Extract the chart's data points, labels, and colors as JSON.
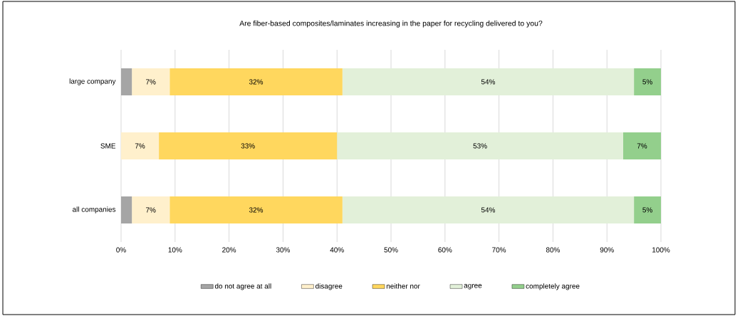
{
  "chart_data": {
    "type": "bar",
    "orientation": "horizontal",
    "stacked": true,
    "title": "Are fiber-based composites/laminates increasing in the paper for recycling delivered to you?",
    "categories": [
      "large company",
      "SME",
      "all companies"
    ],
    "series": [
      {
        "name": "do not agree at all",
        "color": "#a5a5a5",
        "values": [
          2,
          0,
          2
        ],
        "value_labels": [
          null,
          null,
          null
        ]
      },
      {
        "name": "disagree",
        "color": "#fff0cc",
        "values": [
          7,
          7,
          7
        ],
        "value_labels": [
          "7%",
          "7%",
          "7%"
        ]
      },
      {
        "name": "neither nor",
        "color": "#ffd75e",
        "values": [
          32,
          33,
          32
        ],
        "value_labels": [
          "32%",
          "33%",
          "32%"
        ]
      },
      {
        "name": "agree",
        "color": "#e2f0d9",
        "values": [
          54,
          53,
          54
        ],
        "value_labels": [
          "54%",
          "53%",
          "54%"
        ]
      },
      {
        "name": "completely agree",
        "color": "#93cf8c",
        "values": [
          5,
          7,
          5
        ],
        "value_labels": [
          "5%",
          "7%",
          "5%"
        ]
      }
    ],
    "xlim": [
      0,
      100
    ],
    "xticks": [
      {
        "value": 0,
        "label": "0%"
      },
      {
        "value": 10,
        "label": "10%"
      },
      {
        "value": 20,
        "label": "20%"
      },
      {
        "value": 30,
        "label": "30%"
      },
      {
        "value": 40,
        "label": "40%"
      },
      {
        "value": 50,
        "label": "50%"
      },
      {
        "value": 60,
        "label": "60%"
      },
      {
        "value": 70,
        "label": "70%"
      },
      {
        "value": 80,
        "label": "80%"
      },
      {
        "value": 90,
        "label": "90%"
      },
      {
        "value": 100,
        "label": "100%"
      }
    ],
    "grid": "x",
    "legend": "bottom"
  }
}
